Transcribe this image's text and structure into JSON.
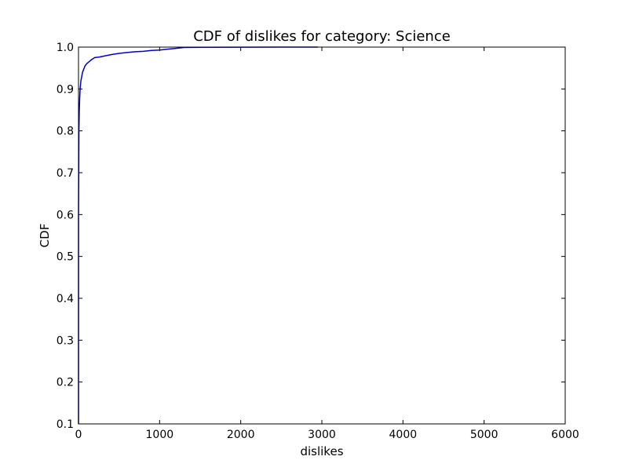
{
  "chart_data": {
    "type": "line",
    "title": "CDF of dislikes for category: Science",
    "xlabel": "dislikes",
    "ylabel": "CDF",
    "xlim": [
      0,
      6000
    ],
    "ylim": [
      0.1,
      1.0
    ],
    "xticks": [
      0,
      1000,
      2000,
      3000,
      4000,
      5000,
      6000
    ],
    "yticks": [
      0.1,
      0.2,
      0.3,
      0.4,
      0.5,
      0.6,
      0.7,
      0.8,
      0.9,
      1.0
    ],
    "xtick_labels": [
      "0",
      "1000",
      "2000",
      "3000",
      "4000",
      "5000",
      "6000"
    ],
    "ytick_labels": [
      "0.1",
      "0.2",
      "0.3",
      "0.4",
      "0.5",
      "0.6",
      "0.7",
      "0.8",
      "0.9",
      "1.0"
    ],
    "grid": false,
    "line_color": "#0000cc",
    "series": [
      {
        "x": [
          0,
          5,
          10,
          15,
          20,
          30,
          40,
          50,
          60,
          80,
          100,
          130,
          160,
          200,
          250,
          300,
          400,
          500,
          600,
          700,
          800,
          900,
          1000,
          1100,
          1200,
          1300,
          1500,
          2000,
          2500,
          2950
        ],
        "y": [
          0.6,
          0.8,
          0.85,
          0.88,
          0.9,
          0.92,
          0.93,
          0.94,
          0.945,
          0.955,
          0.96,
          0.965,
          0.97,
          0.975,
          0.976,
          0.978,
          0.982,
          0.985,
          0.987,
          0.989,
          0.99,
          0.992,
          0.993,
          0.995,
          0.997,
          0.999,
          0.9995,
          0.9998,
          0.9999,
          1.0
        ]
      }
    ]
  }
}
